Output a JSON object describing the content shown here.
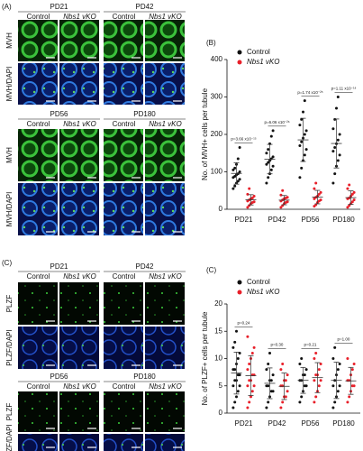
{
  "figure": {
    "panel_a_label": "(A)",
    "panel_b_label": "(B)",
    "panel_c_label": "(C)",
    "conditions": [
      "Control",
      "Nbs1 vKO"
    ],
    "a_blocks": [
      [
        "PD21",
        "PD42"
      ],
      [
        "PD56",
        "PD180"
      ]
    ],
    "c_blocks": [
      [
        "PD21",
        "PD42"
      ],
      [
        "PD56",
        "PD180"
      ]
    ],
    "a_rows": [
      "MVH",
      "MVH/DAPI"
    ],
    "c_rows": [
      "PLZF",
      "PLZF/DAPI"
    ]
  },
  "chart_data": [
    {
      "type": "strip",
      "y_label": "No. of MVH+ cells per tubule",
      "categories": [
        "PD21",
        "PD42",
        "PD56",
        "PD180"
      ],
      "ylim": [
        0,
        400
      ],
      "yticks": [
        0,
        100,
        200,
        300,
        400
      ],
      "annotations": [
        "p=3.66 x10⁻¹⁵",
        "p=6.06 x10⁻²⁶",
        "p=1.74 x10⁻²⁵",
        "p=1.11 x10⁻¹⁸"
      ],
      "series": [
        {
          "name": "Control",
          "color": "#111111",
          "values": [
            [
              55,
              62,
              70,
              75,
              80,
              85,
              88,
              92,
              95,
              100,
              105,
              110,
              120,
              135,
              165
            ],
            [
              70,
              85,
              95,
              105,
              115,
              120,
              125,
              130,
              135,
              140,
              150,
              160,
              175,
              195,
              210
            ],
            [
              85,
              110,
              130,
              145,
              160,
              170,
              180,
              190,
              200,
              210,
              225,
              240,
              260,
              290
            ],
            [
              70,
              95,
              115,
              130,
              145,
              155,
              165,
              175,
              185,
              200,
              215,
              240,
              270,
              300
            ]
          ]
        },
        {
          "name": "Nbs1 vKO",
          "color": "#e8202a",
          "values": [
            [
              5,
              10,
              15,
              18,
              20,
              22,
              25,
              28,
              30,
              35,
              40,
              55
            ],
            [
              5,
              10,
              15,
              18,
              20,
              22,
              25,
              28,
              30,
              32,
              38,
              50
            ],
            [
              8,
              12,
              18,
              22,
              25,
              28,
              32,
              35,
              40,
              45,
              55,
              70
            ],
            [
              5,
              10,
              15,
              20,
              25,
              28,
              30,
              35,
              40,
              45,
              55,
              65
            ]
          ]
        }
      ]
    },
    {
      "type": "strip",
      "y_label": "No. of PLZF+ cells per tubule",
      "categories": [
        "PD21",
        "PD42",
        "PD56",
        "PD180"
      ],
      "ylim": [
        0,
        20
      ],
      "yticks": [
        0,
        5,
        10,
        15,
        20
      ],
      "annotations": [
        "p=0.24",
        "p=0.30",
        "p=0.21",
        "p=1.00"
      ],
      "series": [
        {
          "name": "Control",
          "color": "#111111",
          "values": [
            [
              1,
              2,
              3,
              4,
              5,
              5,
              6,
              6,
              7,
              7,
              8,
              8,
              9,
              10,
              11,
              12,
              13,
              15
            ],
            [
              1,
              2,
              3,
              4,
              4,
              5,
              5,
              6,
              6,
              7,
              8,
              9,
              11
            ],
            [
              2,
              3,
              4,
              5,
              5,
              6,
              6,
              7,
              7,
              8,
              9,
              10
            ],
            [
              1,
              2,
              3,
              4,
              5,
              5,
              6,
              7,
              8,
              9,
              10,
              12
            ]
          ]
        },
        {
          "name": "Nbs1 vKO",
          "color": "#e8202a",
          "values": [
            [
              1,
              2,
              3,
              4,
              5,
              5,
              6,
              6,
              7,
              7,
              8,
              9,
              10,
              11,
              12,
              14
            ],
            [
              1,
              2,
              3,
              3,
              4,
              5,
              5,
              6,
              6,
              7,
              8,
              9
            ],
            [
              2,
              3,
              4,
              5,
              6,
              6,
              7,
              7,
              8,
              9,
              10,
              11
            ],
            [
              2,
              3,
              4,
              5,
              5,
              6,
              6,
              7,
              8,
              9,
              10
            ]
          ]
        }
      ]
    }
  ]
}
